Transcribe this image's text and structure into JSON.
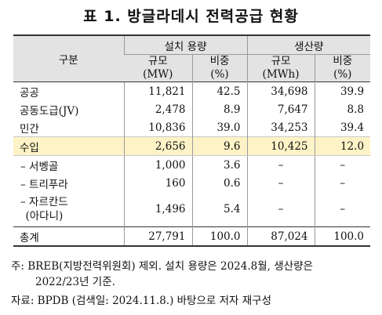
{
  "title": "표 1. 방글라데시 전력공급 현황",
  "header": {
    "category": "구분",
    "group_capacity": "설치 용량",
    "group_generation": "생산량",
    "col_capacity_size": "규모\n(MW)",
    "col_capacity_share": "비중\n(%)",
    "col_generation_size": "규모\n(MWh)",
    "col_generation_share": "비중\n(%)"
  },
  "rows": [
    {
      "label": "공공",
      "cap": "11,821",
      "cap_share": "42.5",
      "gen": "34,698",
      "gen_share": "39.9"
    },
    {
      "label": "공동도급(JV)",
      "cap": "2,478",
      "cap_share": "8.9",
      "gen": "7,647",
      "gen_share": "8.8"
    },
    {
      "label": "민간",
      "cap": "10,836",
      "cap_share": "39.0",
      "gen": "34,253",
      "gen_share": "39.4"
    },
    {
      "label": "수입",
      "cap": "2,656",
      "cap_share": "9.6",
      "gen": "10,425",
      "gen_share": "12.0"
    },
    {
      "label": "– 서벵골",
      "cap": "1,000",
      "cap_share": "3.6",
      "gen": "–",
      "gen_share": "–"
    },
    {
      "label": "– 트리푸라",
      "cap": "160",
      "cap_share": "0.6",
      "gen": "–",
      "gen_share": "–"
    },
    {
      "label": "– 자르칸드\n(아다니)",
      "cap": "1,496",
      "cap_share": "5.4",
      "gen": "–",
      "gen_share": "–"
    },
    {
      "label": "총계",
      "cap": "27,791",
      "cap_share": "100.0",
      "gen": "87,024",
      "gen_share": "100.0"
    }
  ],
  "notes": {
    "note_line1": "주: BREB(지방전력위원회) 제외. 설치 용량은 2024.8월, 생산량은",
    "note_line2": "2022/23년 기준.",
    "source": "자료: BPDB (검색일: 2024.11.8.) 바탕으로 저자 재구성"
  },
  "colors": {
    "header_bg": "#e3e3e3",
    "highlight_bg": "#fdf3c6"
  }
}
